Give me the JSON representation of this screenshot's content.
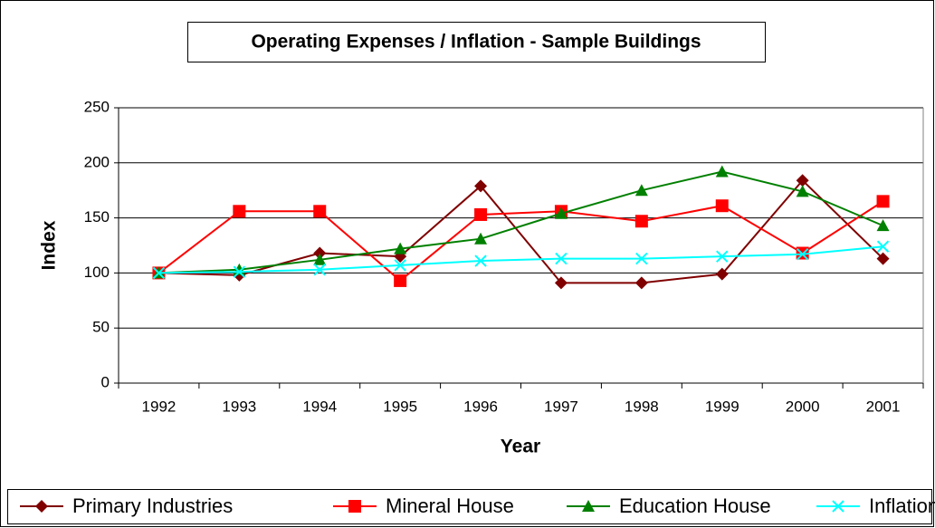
{
  "chart_data": {
    "type": "line",
    "title": "Operating Expenses / Inflation - Sample Buildings",
    "x_label": "Year",
    "y_label": "Index",
    "categories": [
      "1992",
      "1993",
      "1994",
      "1995",
      "1996",
      "1997",
      "1998",
      "1999",
      "2000",
      "2001"
    ],
    "series": [
      {
        "name": "Primary Industries",
        "color": "#800000",
        "marker": "diamond",
        "values": [
          100,
          98,
          118,
          115,
          179,
          91,
          91,
          99,
          184,
          113
        ]
      },
      {
        "name": "Mineral House",
        "color": "#ff0000",
        "marker": "square",
        "values": [
          100,
          156,
          156,
          93,
          153,
          156,
          147,
          161,
          118,
          165
        ]
      },
      {
        "name": "Education House",
        "color": "#008000",
        "marker": "triangle",
        "values": [
          100,
          103,
          112,
          122,
          131,
          154,
          175,
          192,
          174,
          143
        ]
      },
      {
        "name": "Inflation",
        "color": "#00ffff",
        "marker": "x",
        "values": [
          100,
          101,
          103,
          107,
          111,
          113,
          113,
          115,
          117,
          124
        ]
      }
    ],
    "ylim": [
      0,
      250
    ],
    "yticks": [
      0,
      50,
      100,
      150,
      200,
      250
    ],
    "grid": true,
    "legend": "bottom"
  }
}
